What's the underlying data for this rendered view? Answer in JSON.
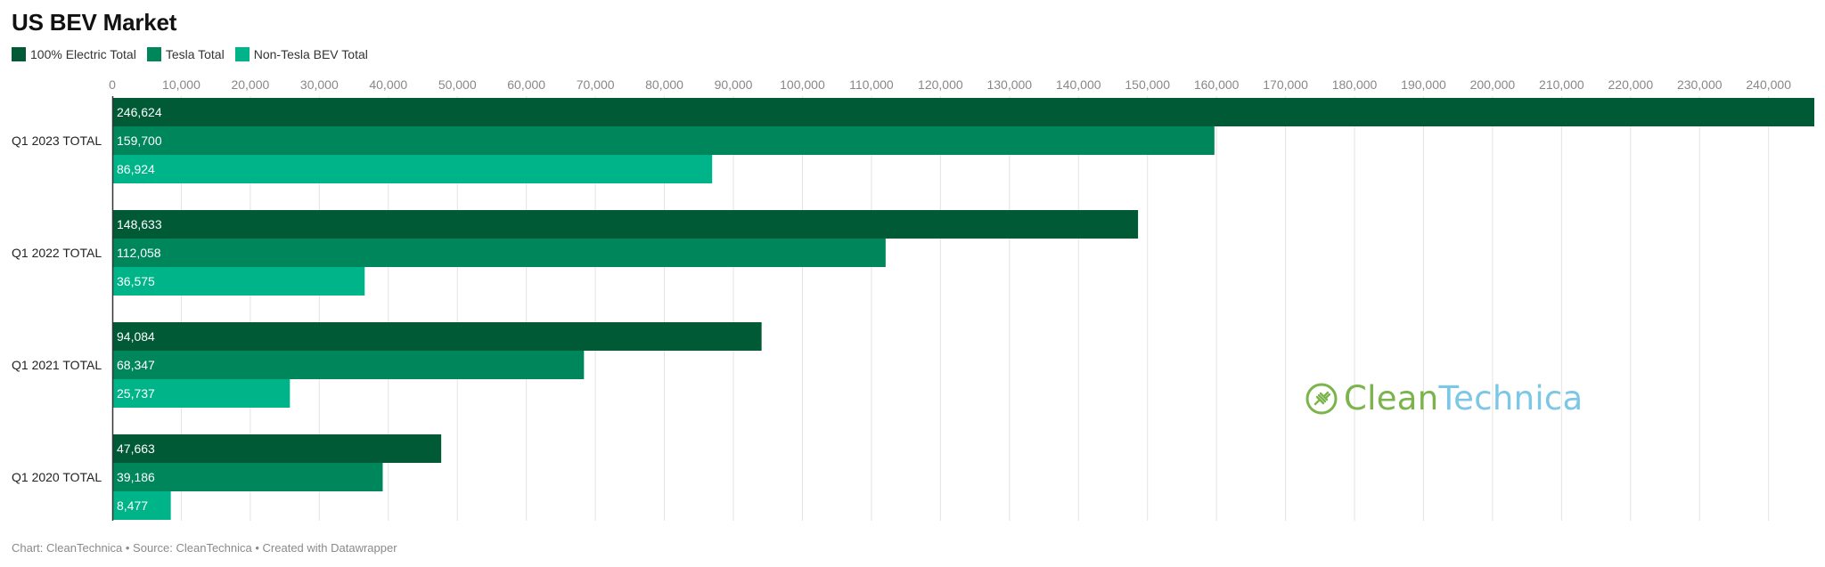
{
  "title": "US BEV Market",
  "legend": [
    {
      "label": "100% Electric Total",
      "color": "#005a36"
    },
    {
      "label": "Tesla Total",
      "color": "#00865b"
    },
    {
      "label": "Non-Tesla BEV Total",
      "color": "#00b48a"
    }
  ],
  "footer": "Chart: CleanTechnica • Source: CleanTechnica • Created with Datawrapper",
  "watermark": {
    "part1": "Clean",
    "part2": "Technica",
    "icon": "plug-icon"
  },
  "chart_data": {
    "type": "bar",
    "orientation": "horizontal",
    "title": "US BEV Market",
    "categories": [
      "Q1 2023 TOTAL",
      "Q1 2022 TOTAL",
      "Q1 2021 TOTAL",
      "Q1 2020 TOTAL"
    ],
    "series": [
      {
        "name": "100% Electric Total",
        "color": "#005a36",
        "values": [
          246624,
          148633,
          94084,
          47663
        ],
        "labels": [
          "246,624",
          "148,633",
          "94,084",
          "47,663"
        ]
      },
      {
        "name": "Tesla Total",
        "color": "#00865b",
        "values": [
          159700,
          112058,
          68347,
          39186
        ],
        "labels": [
          "159,700",
          "112,058",
          "68,347",
          "39,186"
        ]
      },
      {
        "name": "Non-Tesla BEV Total",
        "color": "#00b48a",
        "values": [
          86924,
          36575,
          25737,
          8477
        ],
        "labels": [
          "86,924",
          "36,575",
          "25,737",
          "8,477"
        ]
      }
    ],
    "xlim": [
      0,
      246624
    ],
    "xticks": [
      0,
      10000,
      20000,
      30000,
      40000,
      50000,
      60000,
      70000,
      80000,
      90000,
      100000,
      110000,
      120000,
      130000,
      140000,
      150000,
      160000,
      170000,
      180000,
      190000,
      200000,
      210000,
      220000,
      230000,
      240000
    ],
    "xtick_labels": [
      "0",
      "10,000",
      "20,000",
      "30,000",
      "40,000",
      "50,000",
      "60,000",
      "70,000",
      "80,000",
      "90,000",
      "100,000",
      "110,000",
      "120,000",
      "130,000",
      "140,000",
      "150,000",
      "160,000",
      "170,000",
      "180,000",
      "190,000",
      "200,000",
      "210,000",
      "220,000",
      "230,000",
      "240,000"
    ],
    "xaxis_position": "top",
    "grid": true,
    "legend_position": "top-left"
  }
}
